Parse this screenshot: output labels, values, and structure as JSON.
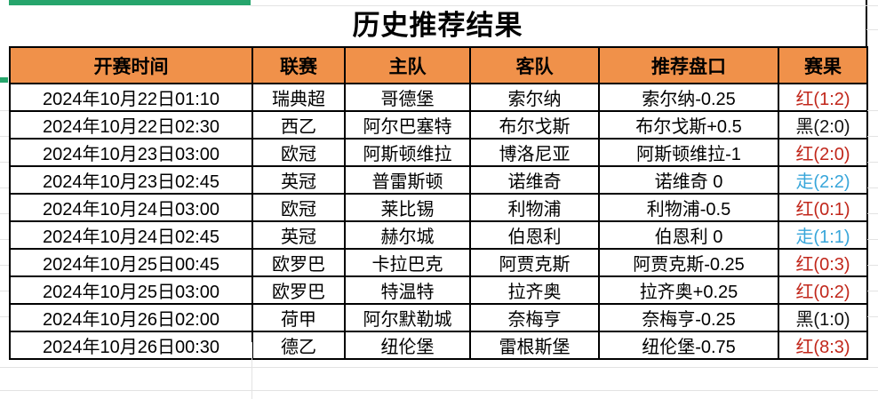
{
  "title": "历史推荐结果",
  "colors": {
    "accent_green": "#26a56c",
    "header_bg": "#f0914a",
    "border_black": "#000000",
    "result_red": "#c1271b",
    "result_draw_blue": "#38a6da",
    "result_black": "#111111",
    "gridline_gray": "#e3e3e3"
  },
  "table": {
    "headers": [
      "开赛时间",
      "联赛",
      "主队",
      "客队",
      "推荐盘口",
      "赛果"
    ],
    "rows": [
      {
        "time": "2024年10月22日01:10",
        "league": "瑞典超",
        "home": "哥德堡",
        "away": "索尔纳",
        "handicap": "索尔纳-0.25",
        "result": "红(1:2)",
        "result_color": "#c1271b"
      },
      {
        "time": "2024年10月22日02:30",
        "league": "西乙",
        "home": "阿尔巴塞特",
        "away": "布尔戈斯",
        "handicap": "布尔戈斯+0.5",
        "result": "黑(2:0)",
        "result_color": "#111111"
      },
      {
        "time": "2024年10月23日03:00",
        "league": "欧冠",
        "home": "阿斯顿维拉",
        "away": "博洛尼亚",
        "handicap": "阿斯顿维拉-1",
        "result": "红(2:0)",
        "result_color": "#c1271b"
      },
      {
        "time": "2024年10月23日02:45",
        "league": "英冠",
        "home": "普雷斯顿",
        "away": "诺维奇",
        "handicap": "诺维奇 0",
        "result": "走(2:2)",
        "result_color": "#38a6da"
      },
      {
        "time": "2024年10月24日03:00",
        "league": "欧冠",
        "home": "莱比锡",
        "away": "利物浦",
        "handicap": "利物浦-0.5",
        "result": "红(0:1)",
        "result_color": "#c1271b"
      },
      {
        "time": "2024年10月24日02:45",
        "league": "英冠",
        "home": "赫尔城",
        "away": "伯恩利",
        "handicap": "伯恩利 0",
        "result": "走(1:1)",
        "result_color": "#38a6da"
      },
      {
        "time": "2024年10月25日00:45",
        "league": "欧罗巴",
        "home": "卡拉巴克",
        "away": "阿贾克斯",
        "handicap": "阿贾克斯-0.25",
        "result": "红(0:3)",
        "result_color": "#c1271b"
      },
      {
        "time": "2024年10月25日03:00",
        "league": "欧罗巴",
        "home": "特温特",
        "away": "拉齐奥",
        "handicap": "拉齐奥+0.25",
        "result": "红(0:2)",
        "result_color": "#c1271b"
      },
      {
        "time": "2024年10月26日02:00",
        "league": "荷甲",
        "home": "阿尔默勒城",
        "away": "奈梅亨",
        "handicap": "奈梅亨-0.25",
        "result": "黑(1:0)",
        "result_color": "#111111"
      },
      {
        "time": "2024年10月26日00:30",
        "league": "德乙",
        "home": "纽伦堡",
        "away": "雷根斯堡",
        "handicap": "纽伦堡-0.75",
        "result": "红(8:3)",
        "result_color": "#c1271b"
      }
    ]
  }
}
